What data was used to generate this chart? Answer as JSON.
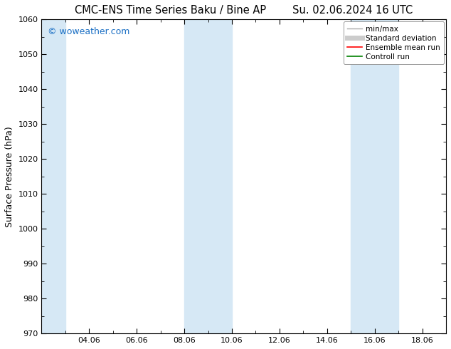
{
  "title_left": "CMC-ENS Time Series Baku / Bine AP",
  "title_right": "Su. 02.06.2024 16 UTC",
  "ylabel": "Surface Pressure (hPa)",
  "ylim": [
    970,
    1060
  ],
  "yticks": [
    970,
    980,
    990,
    1000,
    1010,
    1020,
    1030,
    1040,
    1050,
    1060
  ],
  "xlabel_ticks": [
    "04.06",
    "06.06",
    "08.06",
    "10.06",
    "12.06",
    "14.06",
    "16.06",
    "18.06"
  ],
  "x_tick_positions": [
    4,
    6,
    8,
    10,
    12,
    14,
    16,
    18
  ],
  "xlim": [
    2,
    19
  ],
  "shaded_bands": [
    {
      "x_start": 2,
      "x_end": 3.0
    },
    {
      "x_start": 8,
      "x_end": 10
    },
    {
      "x_start": 15,
      "x_end": 17
    }
  ],
  "shade_color": "#d6e8f5",
  "watermark": "© woweather.com",
  "watermark_color": "#1a6fc4",
  "legend_items": [
    {
      "label": "min/max",
      "color": "#aaaaaa",
      "lw": 1.0,
      "style": "solid"
    },
    {
      "label": "Standard deviation",
      "color": "#cccccc",
      "lw": 5,
      "style": "solid"
    },
    {
      "label": "Ensemble mean run",
      "color": "red",
      "lw": 1.2,
      "style": "solid"
    },
    {
      "label": "Controll run",
      "color": "green",
      "lw": 1.2,
      "style": "solid"
    }
  ],
  "bg_color": "#ffffff",
  "tick_color": "#000000",
  "title_fontsize": 10.5,
  "axis_label_fontsize": 9,
  "tick_fontsize": 8,
  "watermark_fontsize": 9,
  "legend_fontsize": 7.5
}
